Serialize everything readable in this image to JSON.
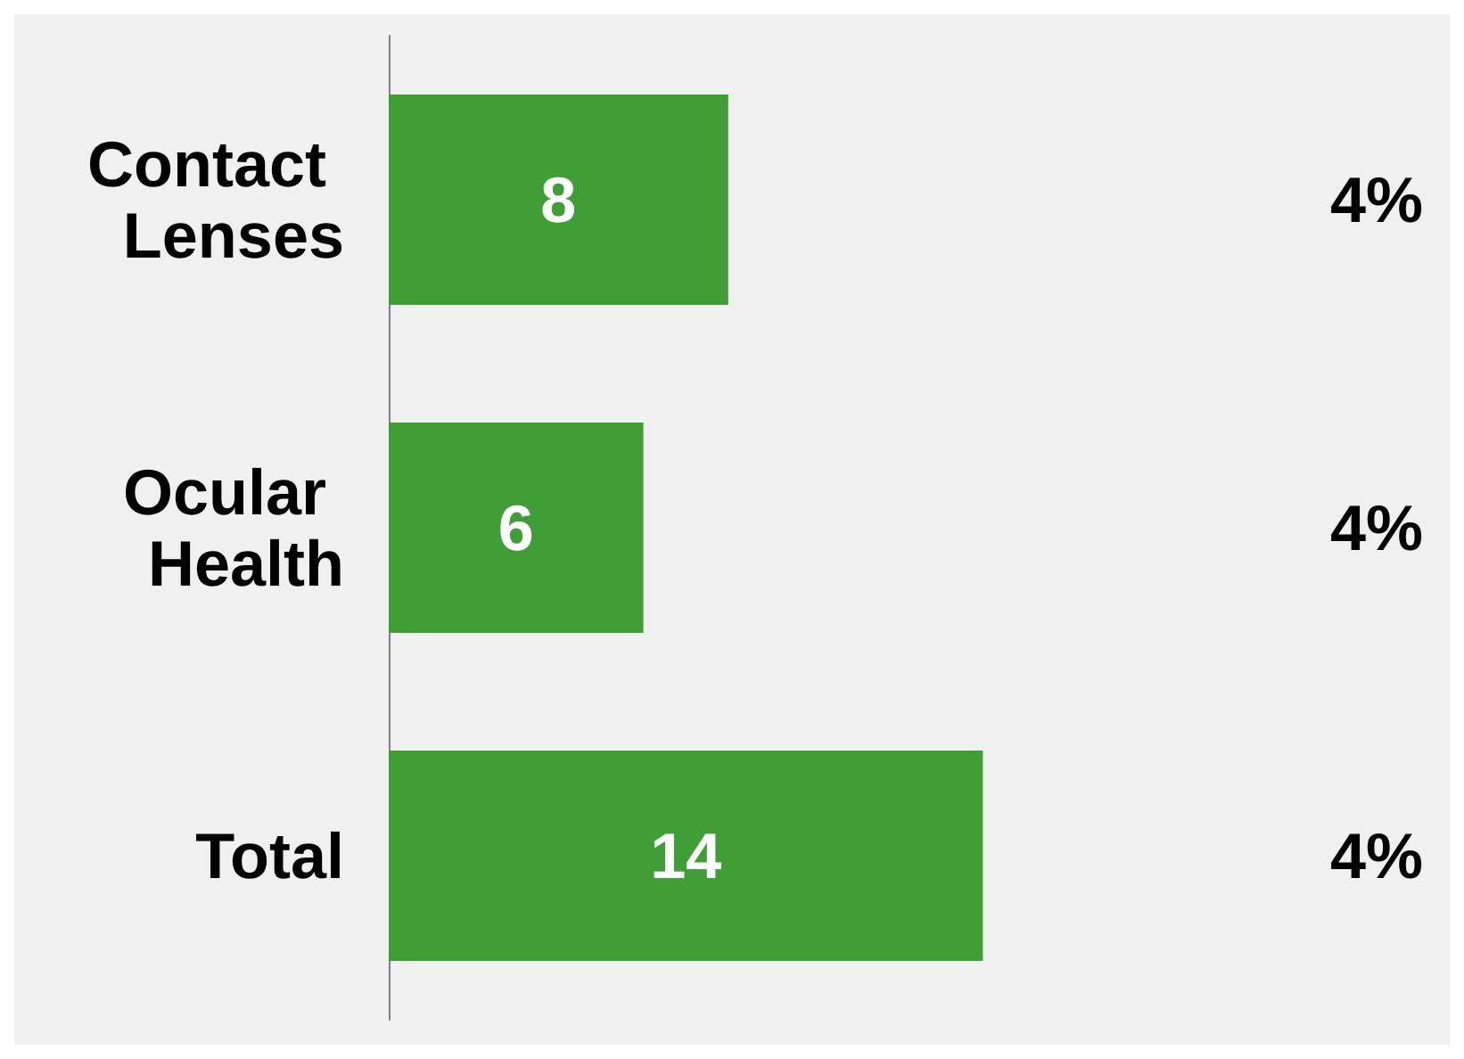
{
  "chart_data": {
    "type": "bar",
    "orientation": "horizontal",
    "categories": [
      "Contact Lenses",
      "Ocular Health",
      "Total"
    ],
    "values": [
      8,
      6,
      14
    ],
    "color": "#409e37",
    "data_labels": true,
    "tick_labels": "y",
    "annotations": [
      "4%",
      "4%",
      "4%"
    ]
  }
}
